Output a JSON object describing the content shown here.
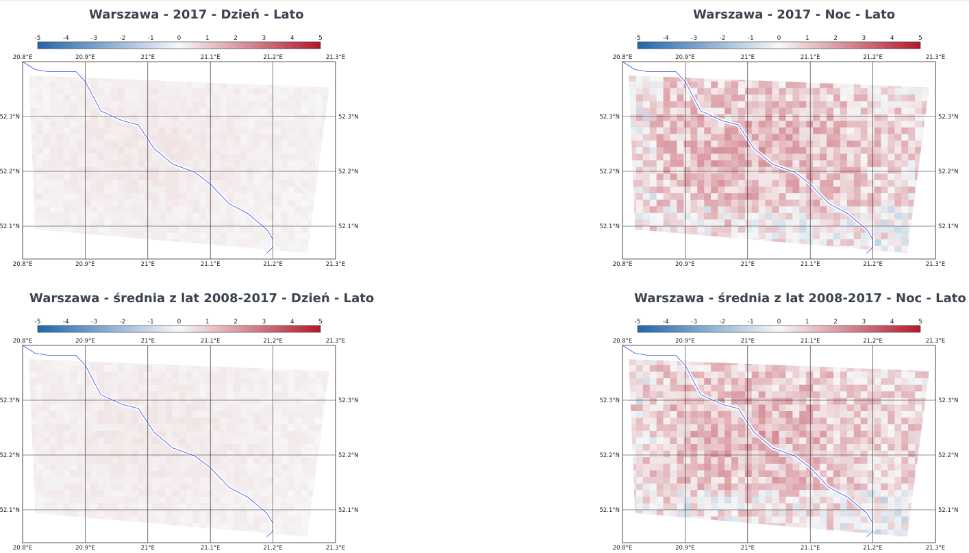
{
  "colors": {
    "title": "#3b4350",
    "cold": "#2166ac",
    "neutral": "#f7f7f7",
    "warm": "#b2182b",
    "river": "#3344ee",
    "grid": "#222222"
  },
  "colorbar": {
    "ticks": [
      "-5",
      "-4",
      "-3",
      "-2",
      "-1",
      "0",
      "1",
      "2",
      "3",
      "4",
      "5"
    ],
    "range": [
      -5,
      5
    ]
  },
  "map": {
    "lon_ticks": [
      "20.8°E",
      "20.9°E",
      "21°E",
      "21.1°E",
      "21.2°E",
      "21.3°E"
    ],
    "lat_ticks_left": [
      "52.3°N",
      "52.2°N",
      "52.1°N"
    ],
    "lat_ticks_right": [
      "52.3°N",
      "52.2°N",
      "52.1°N"
    ],
    "lon_range": [
      20.8,
      21.3
    ],
    "lat_range": [
      52.04,
      52.4
    ]
  },
  "chart_data": [
    {
      "type": "heatmap",
      "title": "Warszawa - 2017 - Dzień - Lato",
      "mean_anomaly": 0.25,
      "spread": 0.15
    },
    {
      "type": "heatmap",
      "title": "Warszawa - 2017 - Noc - Lato",
      "mean_anomaly": 1.1,
      "spread": 1.0
    },
    {
      "type": "heatmap",
      "title": "Warszawa - średnia z lat 2008-2017 - Dzień - Lato",
      "mean_anomaly": 0.25,
      "spread": 0.15
    },
    {
      "type": "heatmap",
      "title": "Warszawa - średnia z lat 2008-2017 - Noc - Lato",
      "mean_anomaly": 1.1,
      "spread": 1.0
    }
  ]
}
